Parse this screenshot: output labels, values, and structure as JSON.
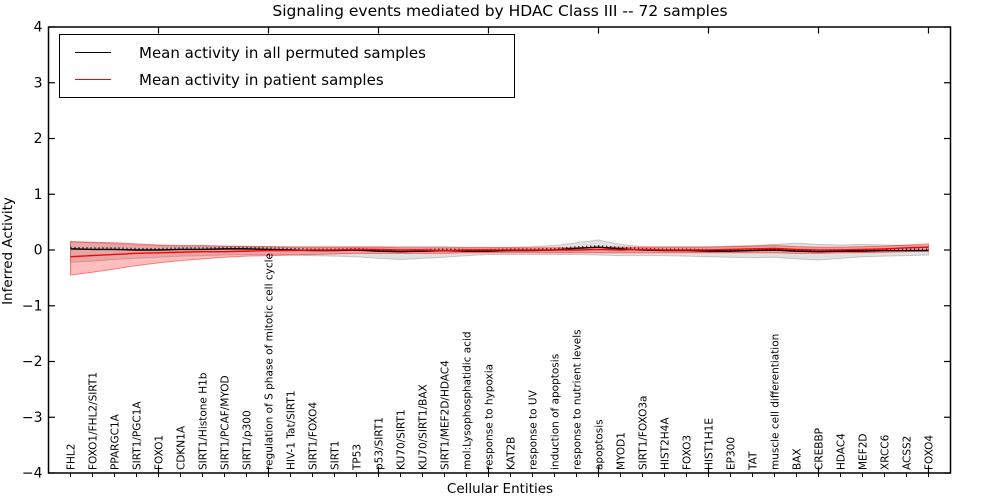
{
  "legend": {
    "items": [
      {
        "label": "Mean activity in all permuted samples",
        "color": "#000000"
      },
      {
        "label": "Mean activity in patient samples",
        "color": "#ff0000"
      }
    ]
  },
  "chart_data": {
    "type": "line",
    "title": "Signaling events mediated by HDAC Class III -- 72 samples",
    "xlabel": "Cellular Entities",
    "ylabel": "Inferred Activity",
    "ylim": [
      -4,
      4
    ],
    "yticks": [
      -4,
      -3,
      -2,
      -1,
      0,
      1,
      2,
      3,
      4
    ],
    "grid": false,
    "legend_position": "upper left",
    "x_major_tick_every": 5,
    "categories": [
      "FHL2",
      "FOXO1/FHL2/SIRT1",
      "PPARGC1A",
      "SIRT1/PGC1A",
      "FOXO1",
      "CDKN1A",
      "SIRT1/Histone H1b",
      "SIRT1/PCAF/MYOD",
      "SIRT1/p300",
      "regulation of S phase of mitotic cell cycle",
      "HIV-1 Tat/SIRT1",
      "SIRT1/FOXO4",
      "SIRT1",
      "TP53",
      "p53/SIRT1",
      "KU70/SIRT1",
      "KU70/SIRT1/BAX",
      "SIRT1/MEF2D/HDAC4",
      "mol:Lysophosphatidic acid",
      "response to hypoxia",
      "KAT2B",
      "response to UV",
      "induction of apoptosis",
      "response to nutrient levels",
      "apoptosis",
      "MYOD1",
      "SIRT1/FOXO3a",
      "HIST2H4A",
      "FOXO3",
      "HIST1H1E",
      "EP300",
      "TAT",
      "muscle cell differentiation",
      "BAX",
      "CREBBP",
      "HDAC4",
      "MEF2D",
      "XRCC6",
      "ACSS2",
      "FOXO4"
    ],
    "series": [
      {
        "name": "Mean activity in all permuted samples",
        "color": "#000000",
        "style": "solid-with-dotted-overlay",
        "values": [
          0.02,
          0.01,
          0.01,
          0.0,
          0.0,
          0.01,
          0.01,
          0.02,
          0.02,
          0.01,
          0.0,
          -0.01,
          -0.01,
          0.0,
          -0.02,
          -0.03,
          -0.02,
          -0.01,
          -0.02,
          -0.02,
          -0.01,
          -0.01,
          0.0,
          0.03,
          0.05,
          0.02,
          0.0,
          -0.01,
          -0.01,
          -0.02,
          -0.02,
          -0.01,
          0.0,
          -0.02,
          -0.03,
          -0.02,
          -0.02,
          -0.01,
          -0.01,
          -0.01
        ]
      },
      {
        "name": "Mean activity in patient samples",
        "color": "#ff0000",
        "style": "solid",
        "values": [
          -0.12,
          -0.1,
          -0.08,
          -0.06,
          -0.05,
          -0.04,
          -0.03,
          -0.03,
          -0.02,
          -0.01,
          -0.01,
          0.0,
          0.0,
          0.01,
          0.01,
          0.0,
          0.0,
          -0.01,
          0.0,
          0.0,
          0.0,
          0.0,
          0.0,
          0.0,
          0.01,
          0.0,
          0.01,
          0.0,
          0.0,
          0.0,
          0.01,
          0.02,
          0.03,
          0.01,
          0.0,
          0.0,
          0.01,
          0.02,
          0.04,
          0.05
        ]
      }
    ],
    "bands": [
      {
        "name": "permuted-samples-range",
        "color": "rgba(120,120,120,0.22)",
        "edge": "rgba(120,120,120,0.35)",
        "upper": [
          0.15,
          0.13,
          0.11,
          0.09,
          0.08,
          0.07,
          0.07,
          0.07,
          0.07,
          0.06,
          0.06,
          0.06,
          0.06,
          0.06,
          0.06,
          0.06,
          0.06,
          0.06,
          0.05,
          0.05,
          0.05,
          0.06,
          0.08,
          0.13,
          0.18,
          0.1,
          0.06,
          0.06,
          0.06,
          0.06,
          0.07,
          0.08,
          0.1,
          0.12,
          0.1,
          0.09,
          0.1,
          0.09,
          0.08,
          0.07
        ],
        "lower": [
          -0.22,
          -0.2,
          -0.17,
          -0.15,
          -0.13,
          -0.11,
          -0.1,
          -0.09,
          -0.08,
          -0.08,
          -0.09,
          -0.1,
          -0.11,
          -0.12,
          -0.15,
          -0.17,
          -0.15,
          -0.13,
          -0.1,
          -0.08,
          -0.08,
          -0.08,
          -0.08,
          -0.08,
          -0.09,
          -0.1,
          -0.1,
          -0.1,
          -0.11,
          -0.12,
          -0.13,
          -0.14,
          -0.13,
          -0.16,
          -0.18,
          -0.15,
          -0.12,
          -0.11,
          -0.1,
          -0.09
        ]
      },
      {
        "name": "patient-samples-range",
        "color": "rgba(255,0,0,0.26)",
        "edge": "rgba(255,0,0,0.45)",
        "upper": [
          0.15,
          0.14,
          0.13,
          0.11,
          0.09,
          0.08,
          0.08,
          0.07,
          0.06,
          0.06,
          0.05,
          0.05,
          0.05,
          0.05,
          0.05,
          0.04,
          0.04,
          0.04,
          0.04,
          0.04,
          0.04,
          0.04,
          0.04,
          0.04,
          0.05,
          0.05,
          0.05,
          0.05,
          0.05,
          0.05,
          0.06,
          0.07,
          0.08,
          0.06,
          0.05,
          0.05,
          0.06,
          0.07,
          0.09,
          0.11
        ],
        "lower": [
          -0.45,
          -0.4,
          -0.34,
          -0.28,
          -0.23,
          -0.19,
          -0.16,
          -0.13,
          -0.11,
          -0.1,
          -0.09,
          -0.08,
          -0.07,
          -0.06,
          -0.06,
          -0.06,
          -0.06,
          -0.06,
          -0.05,
          -0.05,
          -0.05,
          -0.05,
          -0.05,
          -0.05,
          -0.05,
          -0.05,
          -0.05,
          -0.05,
          -0.05,
          -0.05,
          -0.05,
          -0.05,
          -0.05,
          -0.06,
          -0.06,
          -0.05,
          -0.05,
          -0.04,
          -0.03,
          -0.02
        ]
      }
    ]
  }
}
